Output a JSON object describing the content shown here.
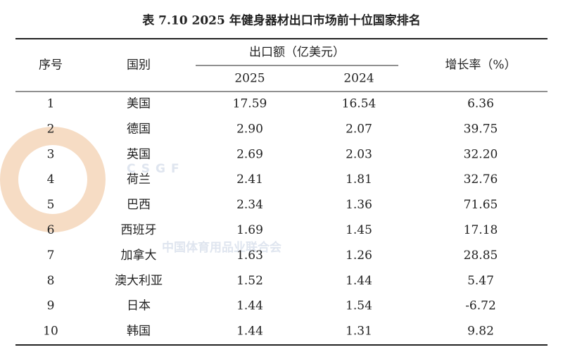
{
  "title": "表 7.10 2025 年健身器材出口市场前十位国家排名",
  "table": {
    "header": {
      "rank": "序号",
      "country": "国别",
      "export": "出口额（亿美元）",
      "y2025": "2025",
      "y2024": "2024",
      "growth": "增长率（%）"
    },
    "rows": [
      [
        "1",
        "美国",
        "17.59",
        "16.54",
        "6.36"
      ],
      [
        "2",
        "德国",
        "2.90",
        "2.07",
        "39.75"
      ],
      [
        "3",
        "英国",
        "2.69",
        "2.03",
        "32.20"
      ],
      [
        "4",
        "荷兰",
        "2.41",
        "1.81",
        "32.76"
      ],
      [
        "5",
        "巴西",
        "2.34",
        "1.36",
        "71.65"
      ],
      [
        "6",
        "西班牙",
        "1.69",
        "1.45",
        "17.18"
      ],
      [
        "7",
        "加拿大",
        "1.63",
        "1.26",
        "28.85"
      ],
      [
        "8",
        "澳大利亚",
        "1.52",
        "1.44",
        "5.47"
      ],
      [
        "9",
        "日本",
        "1.44",
        "1.54",
        "-6.72"
      ],
      [
        "10",
        "韩国",
        "1.44",
        "1.31",
        "9.82"
      ]
    ]
  },
  "watermark": {
    "logo": "CSGF",
    "text": "中国体育用品业联合会"
  }
}
